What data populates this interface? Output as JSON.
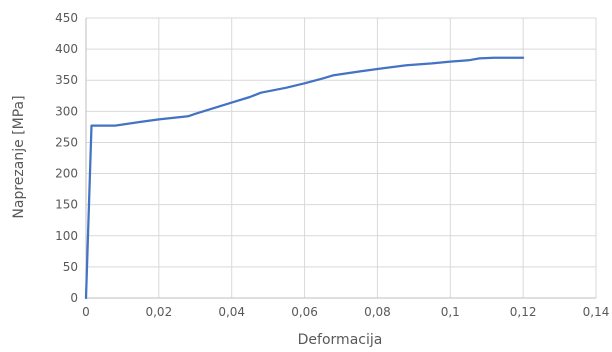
{
  "chart_data": {
    "type": "line",
    "title": "",
    "xlabel": "Deformacija",
    "ylabel": "Naprezanje [MPa]",
    "xlim": [
      0,
      0.14
    ],
    "ylim": [
      0,
      450
    ],
    "x_ticks": [
      0,
      0.02,
      0.04,
      0.06,
      0.08,
      0.1,
      0.12,
      0.14
    ],
    "x_tick_labels": [
      "0",
      "0,02",
      "0,04",
      "0,06",
      "0,08",
      "0,1",
      "0,12",
      "0,14"
    ],
    "y_ticks": [
      0,
      50,
      100,
      150,
      200,
      250,
      300,
      350,
      400,
      450
    ],
    "y_tick_labels": [
      "0",
      "50",
      "100",
      "150",
      "200",
      "250",
      "300",
      "350",
      "400",
      "450"
    ],
    "grid": true,
    "legend": "none",
    "series": [
      {
        "color": "#4472c4",
        "x": [
          0,
          0.0015,
          0.008,
          0.015,
          0.02,
          0.028,
          0.03,
          0.035,
          0.04,
          0.045,
          0.048,
          0.055,
          0.06,
          0.065,
          0.068,
          0.075,
          0.08,
          0.088,
          0.095,
          0.1,
          0.105,
          0.108,
          0.112,
          0.116,
          0.12
        ],
        "y": [
          0,
          277,
          277,
          283,
          287,
          292,
          296,
          305,
          314,
          323,
          330,
          338,
          345,
          353,
          358,
          364,
          368,
          374,
          377,
          380,
          382,
          385,
          386,
          386,
          386
        ]
      }
    ]
  }
}
